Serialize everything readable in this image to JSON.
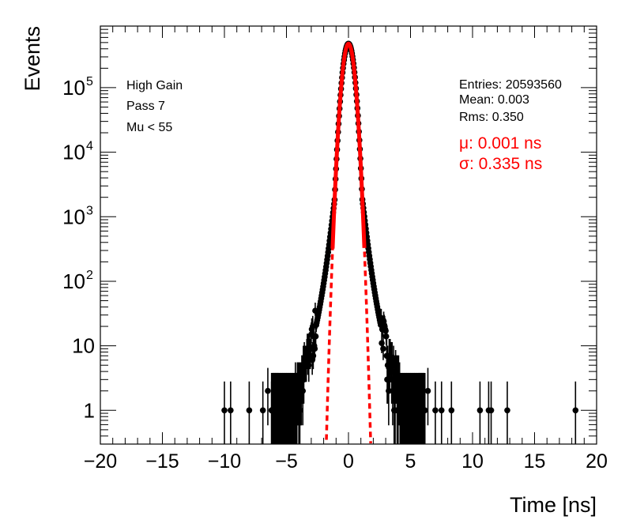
{
  "chart_data": {
    "type": "scatter",
    "xlabel": "Time [ns]",
    "ylabel": "Events",
    "xlim": [
      -20,
      20
    ],
    "ylim": [
      0.3,
      900000
    ],
    "yscale": "log",
    "x_ticks": [
      -20,
      -15,
      -10,
      -5,
      0,
      5,
      10,
      15,
      20
    ],
    "x_tick_labels": [
      "−20",
      "−15",
      "−10",
      "−5",
      "0",
      "5",
      "10",
      "15",
      "20"
    ],
    "y_ticks": [
      1,
      10,
      100,
      1000,
      10000,
      100000
    ],
    "y_tick_labels": [
      {
        "base": "1",
        "exp": ""
      },
      {
        "base": "10",
        "exp": ""
      },
      {
        "base": "10",
        "exp": "2"
      },
      {
        "base": "10",
        "exp": "3"
      },
      {
        "base": "10",
        "exp": "4"
      },
      {
        "base": "10",
        "exp": "5"
      }
    ],
    "annotations_left": [
      "High Gain",
      "Pass 7",
      "Mu < 55"
    ],
    "stats": [
      "Entries: 20593560",
      "Mean: 0.003",
      "Rms: 0.350"
    ],
    "fit_labels": [
      "μ: 0.001 ns",
      "σ: 0.335 ns"
    ],
    "data_color": "#000000",
    "fit_color": "#ff0000",
    "fit": {
      "mu": 0.001,
      "sigma": 0.335,
      "amplitude": 480000
    },
    "grid": false,
    "isolated_points": [
      {
        "x": -10.0,
        "y": 1
      },
      {
        "x": -9.5,
        "y": 1
      },
      {
        "x": -8.0,
        "y": 1
      },
      {
        "x": -6.9,
        "y": 1
      },
      {
        "x": -6.5,
        "y": 2
      },
      {
        "x": -6.2,
        "y": 1
      },
      {
        "x": 6.0,
        "y": 1
      },
      {
        "x": 6.4,
        "y": 2
      },
      {
        "x": 7.0,
        "y": 1
      },
      {
        "x": 7.5,
        "y": 1
      },
      {
        "x": 8.3,
        "y": 1
      },
      {
        "x": 10.6,
        "y": 1
      },
      {
        "x": 11.3,
        "y": 1
      },
      {
        "x": 11.5,
        "y": 1
      },
      {
        "x": 12.8,
        "y": 1
      },
      {
        "x": 18.3,
        "y": 1
      }
    ]
  }
}
